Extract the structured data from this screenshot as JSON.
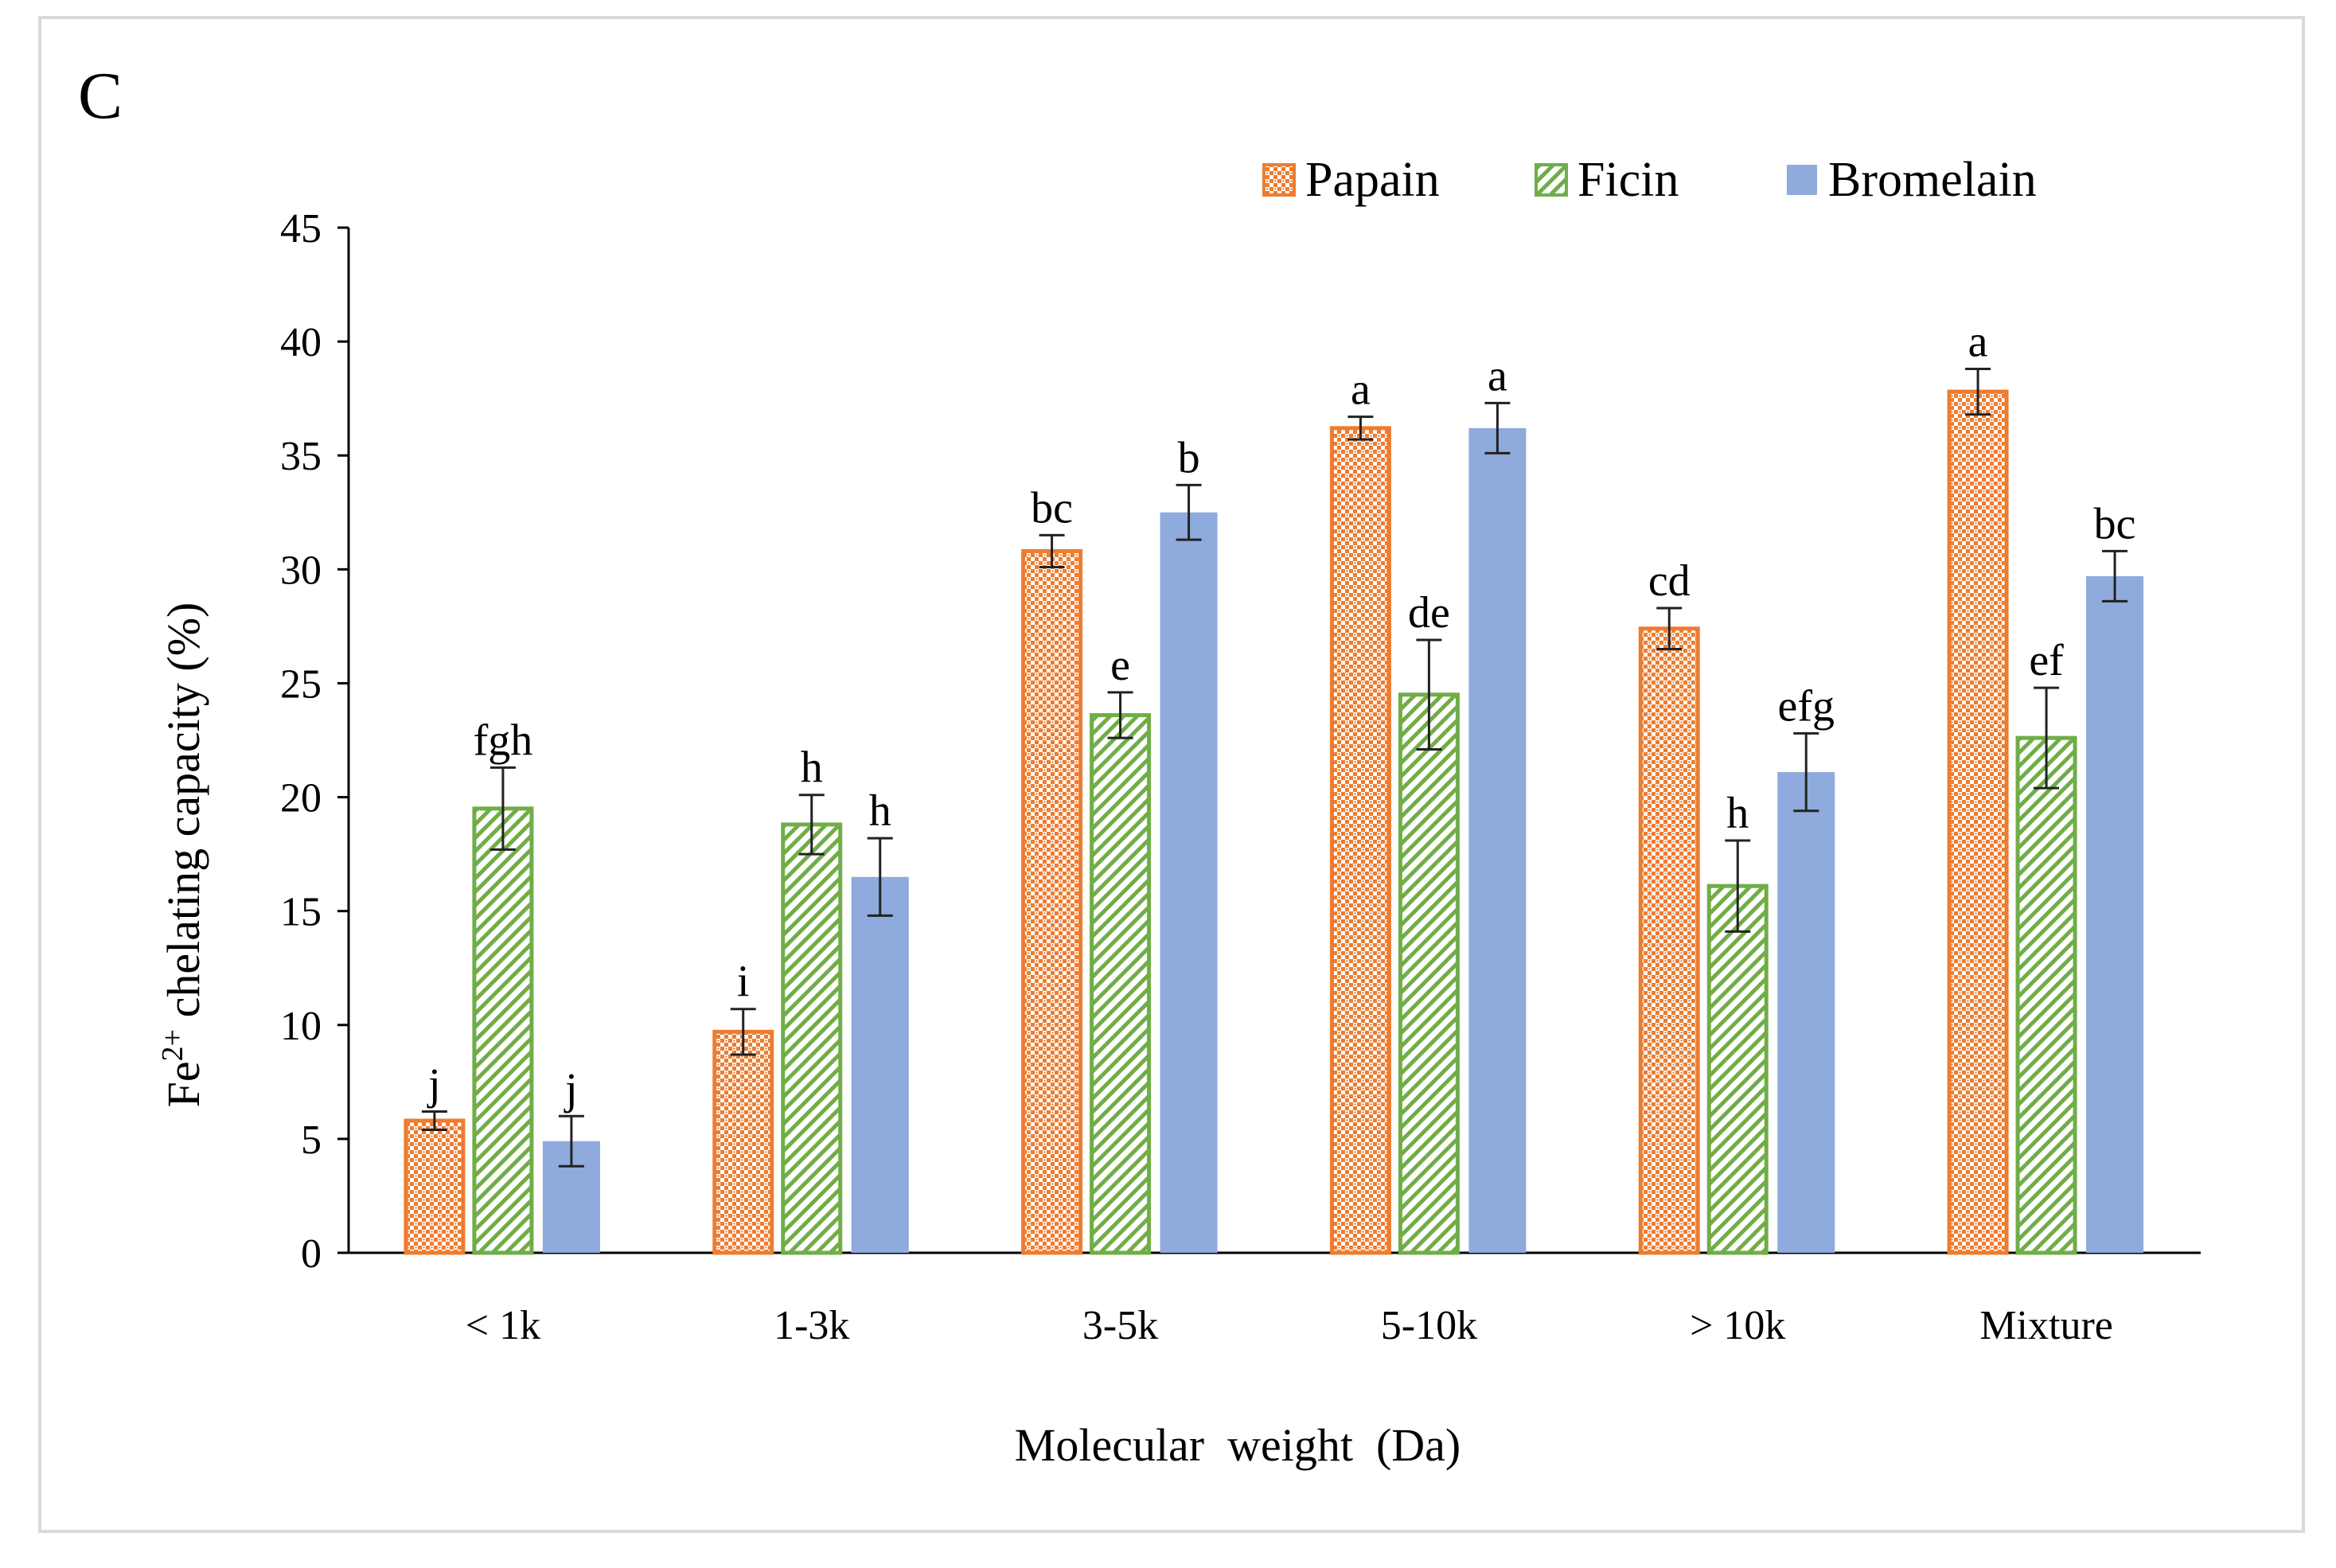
{
  "panel_label": "C",
  "colors": {
    "papain": "#ED7D31",
    "ficin": "#70AD47",
    "bromelain": "#8FAADC",
    "axis": "#000000",
    "error_bar": "#222222",
    "frame": "#d9d9d9"
  },
  "chart_data": {
    "type": "bar",
    "title": "",
    "xlabel": "Molecular  weight  (Da)",
    "ylabel_main": "Fe",
    "ylabel_sup": "2+",
    "ylabel_rest": " chelating capacity (%)",
    "categories": [
      "< 1k",
      "1-3k",
      "3-5k",
      "5-10k",
      "> 10k",
      "Mixture"
    ],
    "ylim": [
      0,
      45
    ],
    "yticks": [
      0,
      5,
      10,
      15,
      20,
      25,
      30,
      35,
      40,
      45
    ],
    "legend_position": "top-right",
    "series": [
      {
        "name": "Papain",
        "pattern": "dots",
        "values": [
          5.8,
          9.7,
          30.8,
          36.2,
          27.4,
          37.8
        ],
        "errors": [
          0.4,
          1.0,
          0.7,
          0.5,
          0.9,
          1.0
        ],
        "labels": [
          "j",
          "i",
          "bc",
          "a",
          "cd",
          "a"
        ]
      },
      {
        "name": "Ficin",
        "pattern": "stripes",
        "values": [
          19.5,
          18.8,
          23.6,
          24.5,
          16.1,
          22.6
        ],
        "errors": [
          1.8,
          1.3,
          1.0,
          2.4,
          2.0,
          2.2
        ],
        "labels": [
          "fgh",
          "h",
          "e",
          "de",
          "h",
          "ef"
        ]
      },
      {
        "name": "Bromelain",
        "pattern": "solid",
        "values": [
          4.9,
          16.5,
          32.5,
          36.2,
          21.1,
          29.7
        ],
        "errors": [
          1.1,
          1.7,
          1.2,
          1.1,
          1.7,
          1.1
        ],
        "labels": [
          "j",
          "h",
          "b",
          "a",
          "efg",
          "bc"
        ]
      }
    ]
  }
}
